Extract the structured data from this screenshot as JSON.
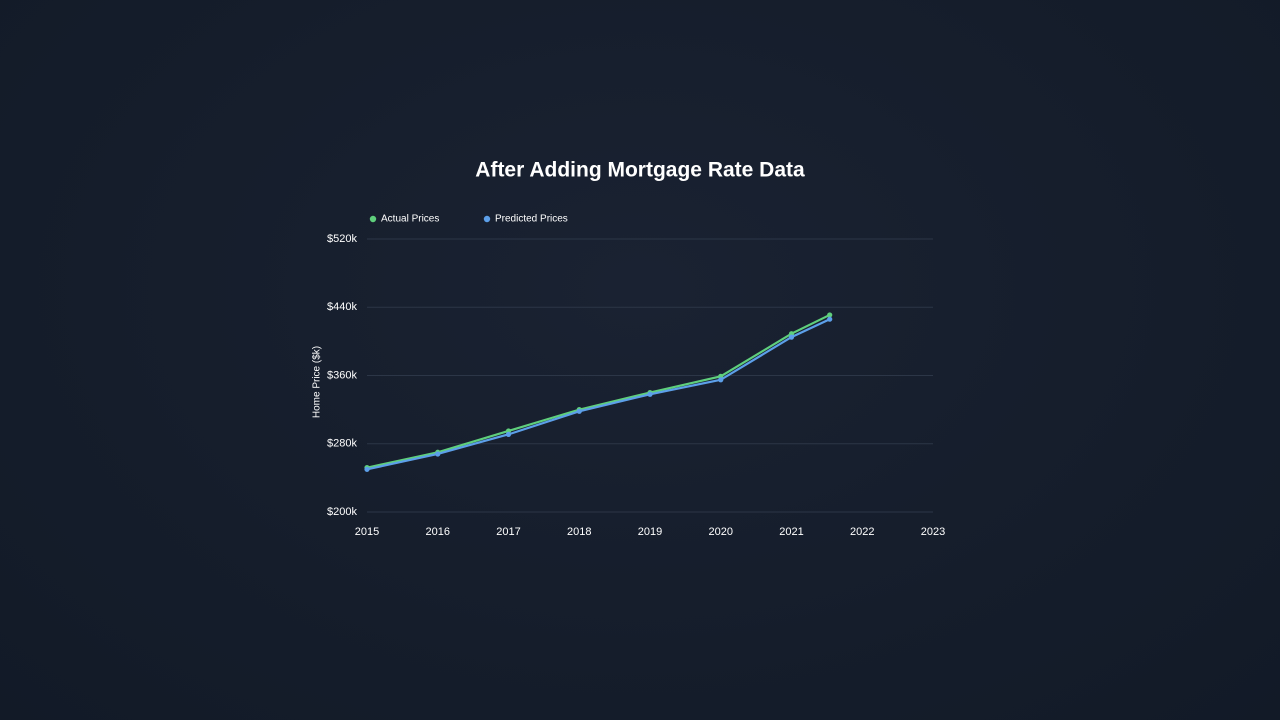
{
  "chart_data": {
    "type": "line",
    "title": "After Adding Mortgage Rate Data",
    "y_label": "Home Price ($k)",
    "x": [
      2015,
      2016,
      2017,
      2018,
      2019,
      2020,
      2021,
      2021.54
    ],
    "series": [
      {
        "name": "Actual Prices",
        "color": "#5fcf7c",
        "values": [
          252,
          270,
          295,
          320,
          340,
          359,
          409,
          431
        ]
      },
      {
        "name": "Predicted Prices",
        "color": "#5c9fe9",
        "values": [
          250,
          268,
          291,
          318,
          338,
          355,
          405,
          426
        ]
      }
    ],
    "xlim": [
      2015,
      2023
    ],
    "xticks": [
      2015,
      2016,
      2017,
      2018,
      2019,
      2020,
      2021,
      2022,
      2023
    ],
    "ylim": [
      200,
      520
    ],
    "yticks": [
      {
        "value": 200,
        "label": "$200k"
      },
      {
        "value": 280,
        "label": "$280k"
      },
      {
        "value": 360,
        "label": "$360k"
      },
      {
        "value": 440,
        "label": "$440k"
      },
      {
        "value": 520,
        "label": "$520k"
      }
    ],
    "grid": true,
    "legend": "top-left"
  }
}
